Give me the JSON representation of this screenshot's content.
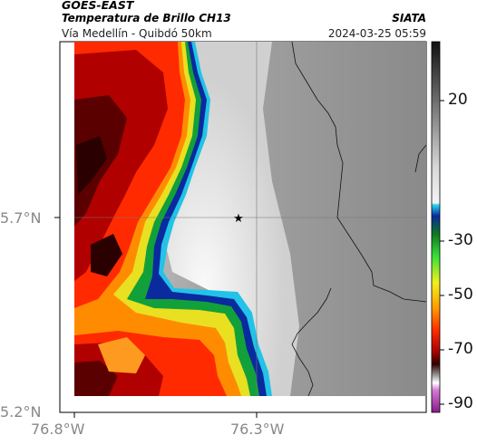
{
  "header": {
    "title": "GOES-EAST",
    "subtitle": "Temperatura de Brillo CH13",
    "source": "SIATA",
    "location": "Vía Medellín - Quibdó 50km",
    "datetime": "2024-03-25 05:59"
  },
  "axes": {
    "y_ticks": [
      "5.7°N",
      "5.2°N"
    ],
    "x_ticks": [
      "76.8°W",
      "76.3°W"
    ]
  },
  "colorbar": {
    "ticks": [
      "20",
      "-30",
      "-50",
      "-70",
      "-90"
    ]
  },
  "colors": {
    "cold_tops": "#8b0000",
    "warm_red": "#ff2a00",
    "boundary_blue": "#0a2a9e",
    "boundary_cyan": "#22c3e6",
    "surface_gray": "#8e8e8e",
    "land_white": "#f4f4f4"
  },
  "markers": [
    {
      "name": "station-marker",
      "symbol": "★"
    }
  ]
}
